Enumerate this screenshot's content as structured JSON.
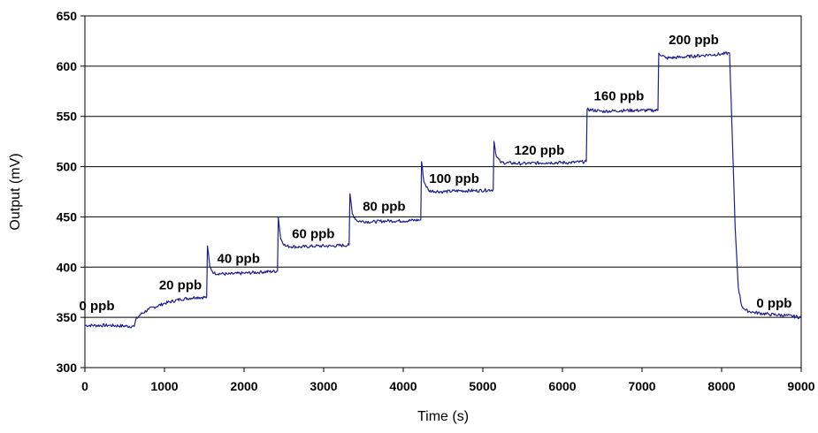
{
  "chart_data": {
    "type": "line",
    "xlabel": "Time (s)",
    "ylabel": "Output (mV)",
    "xlim": [
      0,
      9000
    ],
    "ylim": [
      300,
      650
    ],
    "xticks": [
      "0",
      "1000",
      "2000",
      "3000",
      "4000",
      "5000",
      "6000",
      "7000",
      "8000",
      "9000"
    ],
    "yticks": [
      "300",
      "350",
      "400",
      "450",
      "500",
      "550",
      "600",
      "650"
    ],
    "grid": "horizontal",
    "line_color": "#1f1f8c",
    "series": [
      {
        "values_xy": [
          [
            0,
            342
          ],
          [
            300,
            342
          ],
          [
            620,
            341
          ],
          [
            640,
            348
          ],
          [
            700,
            353
          ],
          [
            800,
            358
          ],
          [
            1000,
            364
          ],
          [
            1200,
            368
          ],
          [
            1400,
            370
          ],
          [
            1530,
            370
          ],
          [
            1540,
            421
          ],
          [
            1570,
            400
          ],
          [
            1620,
            394
          ],
          [
            1800,
            393
          ],
          [
            2000,
            394
          ],
          [
            2200,
            395
          ],
          [
            2420,
            396
          ],
          [
            2430,
            450
          ],
          [
            2460,
            428
          ],
          [
            2520,
            421
          ],
          [
            2700,
            420
          ],
          [
            2900,
            421
          ],
          [
            3100,
            421
          ],
          [
            3320,
            422
          ],
          [
            3330,
            473
          ],
          [
            3360,
            453
          ],
          [
            3420,
            446
          ],
          [
            3600,
            445
          ],
          [
            3800,
            446
          ],
          [
            4000,
            446
          ],
          [
            4220,
            447
          ],
          [
            4230,
            505
          ],
          [
            4260,
            485
          ],
          [
            4320,
            476
          ],
          [
            4500,
            475
          ],
          [
            4700,
            476
          ],
          [
            4900,
            476
          ],
          [
            5130,
            477
          ],
          [
            5140,
            525
          ],
          [
            5170,
            510
          ],
          [
            5230,
            504
          ],
          [
            5500,
            503
          ],
          [
            5800,
            504
          ],
          [
            6100,
            504
          ],
          [
            6300,
            505
          ],
          [
            6310,
            557
          ],
          [
            6500,
            555
          ],
          [
            6800,
            556
          ],
          [
            7000,
            556
          ],
          [
            7200,
            556
          ],
          [
            7210,
            613
          ],
          [
            7300,
            608
          ],
          [
            7500,
            609
          ],
          [
            7800,
            611
          ],
          [
            8000,
            612
          ],
          [
            8100,
            613
          ],
          [
            8130,
            540
          ],
          [
            8170,
            440
          ],
          [
            8210,
            380
          ],
          [
            8250,
            362
          ],
          [
            8300,
            357
          ],
          [
            8400,
            355
          ],
          [
            8600,
            353
          ],
          [
            8800,
            352
          ],
          [
            9000,
            350
          ]
        ]
      }
    ],
    "annotations": [
      {
        "text": "0 ppb",
        "x": 150,
        "y": 357
      },
      {
        "text": "20 ppb",
        "x": 1200,
        "y": 378
      },
      {
        "text": "40 ppb",
        "x": 1930,
        "y": 404
      },
      {
        "text": "60 ppb",
        "x": 2870,
        "y": 429
      },
      {
        "text": "80 ppb",
        "x": 3760,
        "y": 456
      },
      {
        "text": "100 ppb",
        "x": 4640,
        "y": 484
      },
      {
        "text": "120 ppb",
        "x": 5710,
        "y": 512
      },
      {
        "text": "160 ppb",
        "x": 6710,
        "y": 566
      },
      {
        "text": "200 ppb",
        "x": 7650,
        "y": 622
      },
      {
        "text": "0 ppb",
        "x": 8660,
        "y": 360
      }
    ]
  }
}
